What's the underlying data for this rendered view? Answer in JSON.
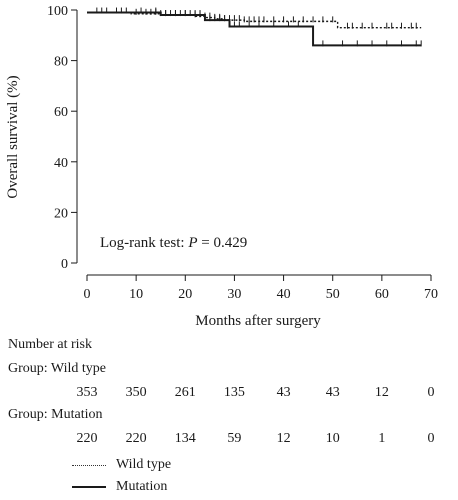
{
  "chart_data": {
    "type": "line",
    "ylabel": "Overall survival (%)",
    "xlabel": "Months after surgery",
    "xlim": [
      0,
      70
    ],
    "ylim": [
      0,
      100
    ],
    "x_ticks": [
      0,
      10,
      20,
      30,
      40,
      50,
      60,
      70
    ],
    "y_ticks": [
      0,
      20,
      40,
      60,
      80,
      100
    ],
    "grid": false,
    "legend_position": "bottom-left",
    "annotation": {
      "prefix": "Log-rank test: ",
      "italic": "P",
      "suffix": " = 0.429"
    },
    "series": [
      {
        "name": "Wild type",
        "style": "dotted",
        "steps": [
          [
            0,
            99
          ],
          [
            9,
            98.5
          ],
          [
            15,
            98
          ],
          [
            22,
            97.5
          ],
          [
            24,
            97
          ],
          [
            26,
            96.5
          ],
          [
            28,
            96
          ],
          [
            32,
            95.5
          ],
          [
            51,
            93
          ],
          [
            68,
            93
          ]
        ],
        "censor_x": [
          2,
          4,
          6,
          8,
          10,
          12,
          13,
          14,
          15,
          16,
          17,
          18,
          19,
          20,
          21,
          22,
          23,
          24,
          25,
          26,
          27,
          28,
          29,
          30,
          31,
          32,
          33,
          34,
          35,
          36,
          38,
          40,
          42,
          44,
          46,
          48,
          50,
          53,
          54,
          56,
          58,
          61,
          62,
          64,
          66,
          67
        ]
      },
      {
        "name": "Mutation",
        "style": "solid",
        "steps": [
          [
            0,
            99
          ],
          [
            15,
            98
          ],
          [
            24,
            96
          ],
          [
            29,
            93.5
          ],
          [
            46,
            86
          ],
          [
            68,
            86
          ]
        ],
        "censor_x": [
          3,
          7,
          11,
          14,
          16,
          18,
          20,
          22,
          23,
          25,
          26,
          27,
          28,
          30,
          31,
          33,
          35,
          38,
          41,
          43,
          48,
          52,
          55,
          58,
          61,
          64,
          67,
          68
        ]
      }
    ]
  },
  "risk_table": {
    "title": "Number at risk",
    "time_points": [
      0,
      10,
      20,
      30,
      40,
      50,
      60,
      70
    ],
    "groups": [
      {
        "label": "Group: Wild type",
        "counts": [
          "353",
          "350",
          "261",
          "135",
          "43",
          "43",
          "12",
          "0"
        ]
      },
      {
        "label": "Group: Mutation",
        "counts": [
          "220",
          "220",
          "134",
          "59",
          "12",
          "10",
          "1",
          "0"
        ]
      }
    ]
  },
  "legend": {
    "items": [
      {
        "label": "Wild type",
        "style": "dotted"
      },
      {
        "label": "Mutation",
        "style": "solid"
      }
    ]
  }
}
